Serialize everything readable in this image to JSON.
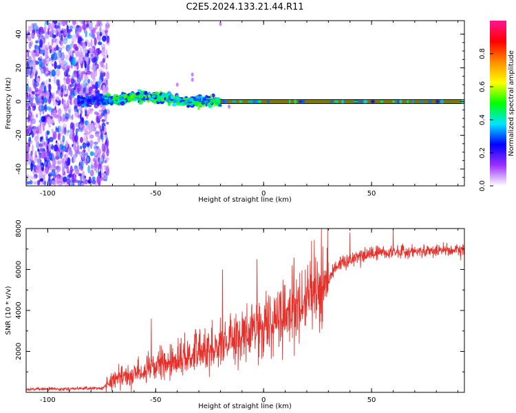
{
  "title": "C2E5.2024.133.21.44.R11",
  "chart_data": [
    {
      "type": "heatmap",
      "xlabel": "Height of straight line (km)",
      "ylabel": "Frequency (Hz)",
      "xlim": [
        -110,
        93
      ],
      "ylim": [
        -50,
        48
      ],
      "xticks": [
        -100,
        -50,
        0,
        50
      ],
      "yticks": [
        -40,
        -20,
        0,
        20,
        40
      ],
      "colorbar": {
        "label": "Normalized spectral amplitude",
        "range": [
          0,
          1
        ],
        "ticks": [
          0.0,
          0.2,
          0.4,
          0.6,
          0.8
        ],
        "colors": [
          "#ffffff",
          "#9b30ff",
          "#0000ff",
          "#00e5ff",
          "#00ff00",
          "#ffff00",
          "#ff8c00",
          "#ff0000",
          "#ff1493"
        ]
      },
      "features": {
        "noise_region_x": [
          -110,
          -75
        ],
        "line_center_hz": [
          {
            "x": -85,
            "y": 0
          },
          {
            "x": -70,
            "y": 1
          },
          {
            "x": -60,
            "y": 3
          },
          {
            "x": -45,
            "y": 2
          },
          {
            "x": -35,
            "y": 0
          },
          {
            "x": -20,
            "y": 0
          },
          {
            "x": 93,
            "y": 0
          }
        ],
        "strong_line_x": [
          -20,
          93
        ]
      }
    },
    {
      "type": "line",
      "xlabel": "Height of straight line (km)",
      "ylabel": "SNR (10 * v/v)",
      "xlim": [
        -110,
        93
      ],
      "ylim": [
        0,
        8000
      ],
      "xticks": [
        -100,
        -50,
        0,
        50
      ],
      "yticks": [
        2000,
        4000,
        6000,
        8000
      ],
      "color": "#e8302a",
      "trend": [
        {
          "x": -110,
          "y": 150
        },
        {
          "x": -75,
          "y": 200
        },
        {
          "x": -68,
          "y": 700
        },
        {
          "x": -50,
          "y": 1200
        },
        {
          "x": -30,
          "y": 2000
        },
        {
          "x": -10,
          "y": 2800
        },
        {
          "x": 10,
          "y": 3700
        },
        {
          "x": 25,
          "y": 4900
        },
        {
          "x": 35,
          "y": 6300
        },
        {
          "x": 50,
          "y": 6800
        },
        {
          "x": 93,
          "y": 7000
        }
      ],
      "peaks": [
        {
          "x": -52,
          "y": 3600
        },
        {
          "x": -19,
          "y": 6000
        },
        {
          "x": -3,
          "y": 6500
        },
        {
          "x": 9,
          "y": 5500
        },
        {
          "x": 40,
          "y": 7800
        },
        {
          "x": 60,
          "y": 7900
        }
      ]
    }
  ]
}
